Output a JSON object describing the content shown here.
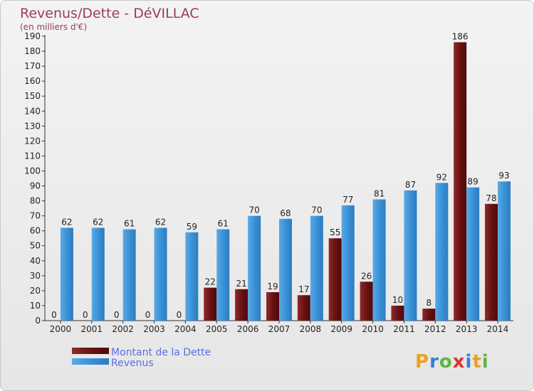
{
  "chart_data": {
    "type": "bar",
    "title": "Revenus/Dette - DéVILLAC",
    "subtitle": "(en milliers d'€)",
    "categories": [
      "2000",
      "2001",
      "2002",
      "2003",
      "2004",
      "2005",
      "2006",
      "2007",
      "2008",
      "2009",
      "2010",
      "2011",
      "2012",
      "2013",
      "2014"
    ],
    "series": [
      {
        "name": "Montant de la Dette",
        "color": "#6b1212",
        "values": [
          0,
          0,
          0,
          0,
          0,
          22,
          21,
          19,
          17,
          55,
          26,
          10,
          8,
          186,
          78
        ]
      },
      {
        "name": "Revenus",
        "color": "#3a92d6",
        "values": [
          62,
          62,
          61,
          62,
          59,
          61,
          70,
          68,
          70,
          77,
          81,
          87,
          92,
          89,
          93
        ]
      }
    ],
    "ylim": [
      0,
      190
    ],
    "ytick_step": 10,
    "grid": false,
    "legend": "bottom-left"
  },
  "logo": {
    "text": "Proxiti"
  }
}
